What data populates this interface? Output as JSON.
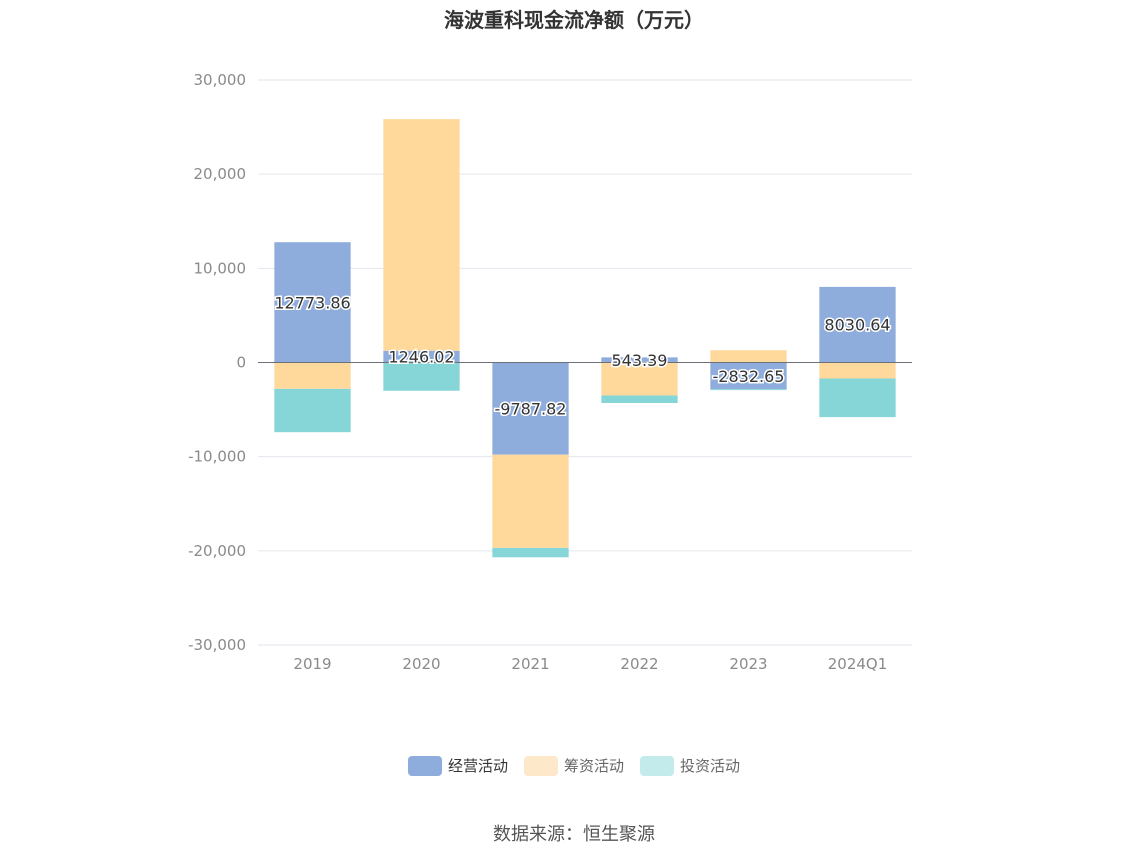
{
  "title": "海波重科现金流净额（万元）",
  "source": "数据来源：恒生聚源",
  "chart_data": {
    "type": "bar",
    "stacked": true,
    "title": "海波重科现金流净额（万元）",
    "categories": [
      "2019",
      "2020",
      "2021",
      "2022",
      "2023",
      "2024Q1"
    ],
    "series": [
      {
        "name": "经营活动",
        "color": "#8faddc",
        "legend_color": "#8faddc",
        "values": [
          12773.86,
          1246.02,
          -9787.82,
          543.39,
          -2832.65,
          8030.64
        ],
        "labels": [
          "12773.86",
          "1246.02",
          "-9787.82",
          "543.39",
          "-2832.65",
          "8030.64"
        ]
      },
      {
        "name": "筹资活动",
        "color": "#fed99b",
        "legend_color": "#fde8c9",
        "values": [
          -2800,
          24600,
          -9900,
          -3500,
          1300,
          -1700
        ]
      },
      {
        "name": "投资活动",
        "color": "#86d6d8",
        "legend_color": "#c4ebeb",
        "values": [
          -4600,
          -3000,
          -1000,
          -800,
          -100,
          -4100
        ]
      }
    ],
    "ylim": [
      -30000,
      30000
    ],
    "yticks": [
      -30000,
      -20000,
      -10000,
      0,
      10000,
      20000,
      30000
    ],
    "ytick_labels": [
      "-30,000",
      "-20,000",
      "-10,000",
      "0",
      "10,000",
      "20,000",
      "30,000"
    ],
    "grid": true,
    "legend_position": "bottom"
  }
}
